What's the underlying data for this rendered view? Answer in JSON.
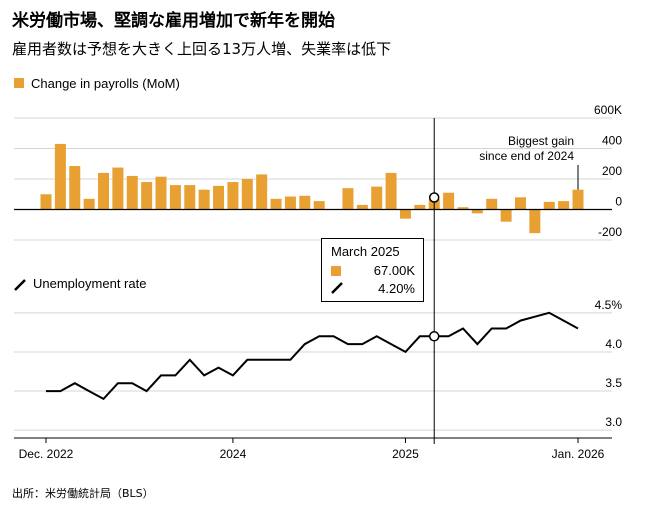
{
  "header": {
    "title": "米労働市場、堅調な雇用増加で新年を開始",
    "subtitle": "雇用者数は予想を大きく上回る13万人増、失業率は低下"
  },
  "source": "出所：米労働統計局（BLS）",
  "colors": {
    "bar": "#E8A033",
    "line": "#000000",
    "grid": "#d4d4d4"
  },
  "chart_data": [
    {
      "type": "bar",
      "legend": "Change in payrolls (MoM)",
      "x": [
        "2022-12",
        "2023-01",
        "2023-02",
        "2023-03",
        "2023-04",
        "2023-05",
        "2023-06",
        "2023-07",
        "2023-08",
        "2023-09",
        "2023-10",
        "2023-11",
        "2023-12",
        "2024-01",
        "2024-02",
        "2024-03",
        "2024-04",
        "2024-05",
        "2024-06",
        "2024-07",
        "2024-08",
        "2024-09",
        "2024-10",
        "2024-11",
        "2024-12",
        "2025-01",
        "2025-02",
        "2025-03",
        "2025-04",
        "2025-05",
        "2025-06",
        "2025-07",
        "2025-08",
        "2025-09",
        "2025-10",
        "2025-11",
        "2025-12",
        "2026-01"
      ],
      "values": [
        100,
        430,
        285,
        70,
        240,
        275,
        220,
        180,
        215,
        160,
        160,
        130,
        155,
        180,
        200,
        230,
        70,
        85,
        90,
        55,
        0,
        140,
        30,
        150,
        240,
        -60,
        30,
        67,
        110,
        15,
        -25,
        70,
        -80,
        80,
        -155,
        50,
        55,
        130
      ],
      "ylim": [
        -200,
        600
      ],
      "yticks": [
        -200,
        0,
        200,
        400,
        600
      ],
      "ytick_labels": [
        "-200",
        "0",
        "200",
        "400",
        "600K"
      ],
      "annotation": [
        "Biggest gain",
        "since end of 2024"
      ]
    },
    {
      "type": "line",
      "legend": "Unemployment rate",
      "x": [
        "2022-12",
        "2023-01",
        "2023-02",
        "2023-03",
        "2023-04",
        "2023-05",
        "2023-06",
        "2023-07",
        "2023-08",
        "2023-09",
        "2023-10",
        "2023-11",
        "2023-12",
        "2024-01",
        "2024-02",
        "2024-03",
        "2024-04",
        "2024-05",
        "2024-06",
        "2024-07",
        "2024-08",
        "2024-09",
        "2024-10",
        "2024-11",
        "2024-12",
        "2025-01",
        "2025-02",
        "2025-03",
        "2025-04",
        "2025-05",
        "2025-06",
        "2025-07",
        "2025-08",
        "2025-09",
        "2025-10",
        "2025-11",
        "2025-12",
        "2026-01"
      ],
      "values": [
        3.5,
        3.5,
        3.6,
        3.5,
        3.4,
        3.6,
        3.6,
        3.5,
        3.7,
        3.7,
        3.9,
        3.7,
        3.8,
        3.7,
        3.9,
        3.9,
        3.9,
        3.9,
        4.1,
        4.2,
        4.2,
        4.1,
        4.1,
        4.2,
        4.1,
        4.0,
        4.2,
        4.2,
        4.2,
        4.3,
        4.1,
        4.3,
        4.3,
        4.4,
        4.45,
        4.5,
        4.4,
        4.3
      ],
      "ylim": [
        2.9,
        4.6
      ],
      "yticks": [
        3.0,
        3.5,
        4.0,
        4.5
      ],
      "ytick_labels": [
        "3.0",
        "3.5",
        "4.0",
        "4.5%"
      ]
    }
  ],
  "xaxis": {
    "labels": [
      "Dec. 2022",
      "2024",
      "2025",
      "Jan. 2026"
    ],
    "label_x": [
      "2022-12",
      "2024-01",
      "2025-01",
      "2026-01"
    ]
  },
  "tooltip": {
    "date": "March 2025",
    "payrolls": "67.00K",
    "rate": "4.20%",
    "x": "2025-03"
  }
}
